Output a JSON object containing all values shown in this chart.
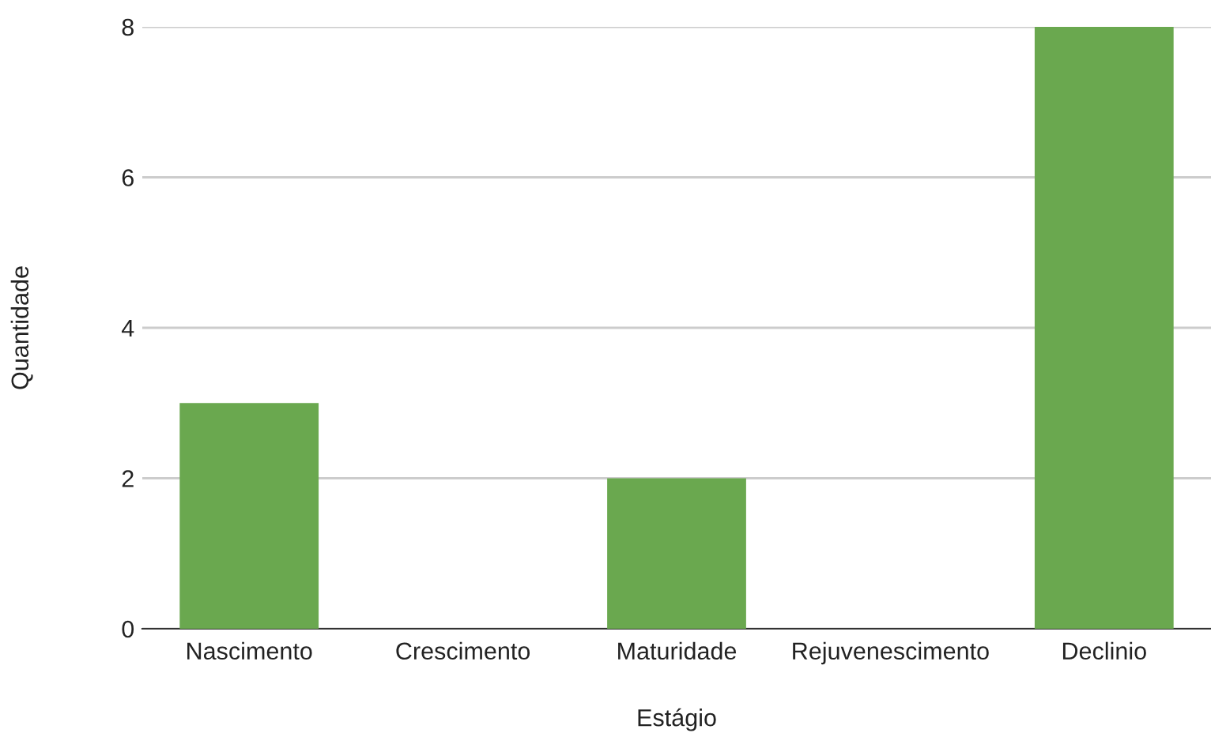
{
  "chart_data": {
    "type": "bar",
    "xlabel": "Estágio",
    "ylabel": "Quantidade",
    "categories": [
      "Nascimento",
      "Crescimento",
      "Maturidade",
      "Rejuvenescimento",
      "Declinio"
    ],
    "values": [
      3,
      0,
      2,
      0,
      8
    ],
    "color": "#6aa84f",
    "ylim": [
      0,
      8
    ],
    "yticks": [
      0,
      2,
      4,
      6,
      8
    ],
    "grid": "y"
  }
}
